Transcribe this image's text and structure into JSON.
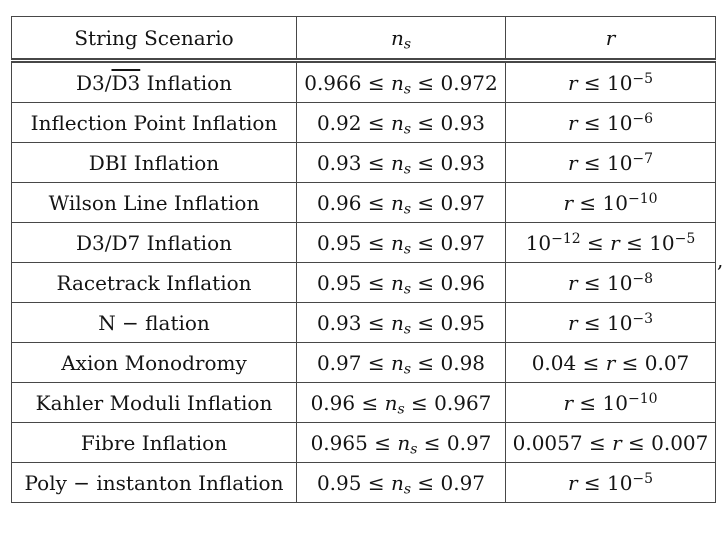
{
  "colors": {
    "background": "#ffffff",
    "text": "#141414",
    "border": "#474747"
  },
  "equation": {
    "trailing_punctuation": ","
  },
  "table": {
    "headers": [
      {
        "id": "scenario",
        "label": "String Scenario"
      },
      {
        "id": "ns",
        "label": "*n*_{s}"
      },
      {
        "id": "r",
        "label": "*r*"
      }
    ],
    "rows": [
      {
        "scenario": "D3/~D3~ Inflation",
        "ns": "0.966 ≤ *n*_{s} ≤ 0.972",
        "r": "*r* ≤ 10^{−5}"
      },
      {
        "scenario": "Inflection Point Inflation",
        "ns": "0.92 ≤ *n*_{s} ≤ 0.93",
        "r": "*r* ≤ 10^{−6}"
      },
      {
        "scenario": "DBI Inflation",
        "ns": "0.93 ≤ *n*_{s} ≤ 0.93",
        "r": "*r* ≤ 10^{−7}"
      },
      {
        "scenario": "Wilson Line Inflation",
        "ns": "0.96 ≤ *n*_{s} ≤ 0.97",
        "r": "*r* ≤ 10^{−10}"
      },
      {
        "scenario": "D3/D7 Inflation",
        "ns": "0.95 ≤ *n*_{s} ≤ 0.97",
        "r": "10^{−12} ≤ *r* ≤ 10^{−5}"
      },
      {
        "scenario": "Racetrack Inflation",
        "ns": "0.95 ≤ *n*_{s} ≤ 0.96",
        "r": "*r* ≤ 10^{−8}"
      },
      {
        "scenario": "N − flation",
        "ns": "0.93 ≤ *n*_{s} ≤ 0.95",
        "r": "*r* ≤ 10^{−3}"
      },
      {
        "scenario": "Axion Monodromy",
        "ns": "0.97 ≤ *n*_{s} ≤ 0.98",
        "r": "0.04 ≤ *r* ≤ 0.07"
      },
      {
        "scenario": "Kahler Moduli Inflation",
        "ns": "0.96 ≤ *n*_{s} ≤ 0.967",
        "r": "*r* ≤ 10^{−10}"
      },
      {
        "scenario": "Fibre Inflation",
        "ns": "0.965 ≤ *n*_{s} ≤ 0.97",
        "r": "0.0057 ≤ *r* ≤ 0.007"
      },
      {
        "scenario": "Poly − instanton Inflation",
        "ns": "0.95 ≤ *n*_{s} ≤ 0.97",
        "r": "*r* ≤ 10^{−5}"
      }
    ]
  }
}
